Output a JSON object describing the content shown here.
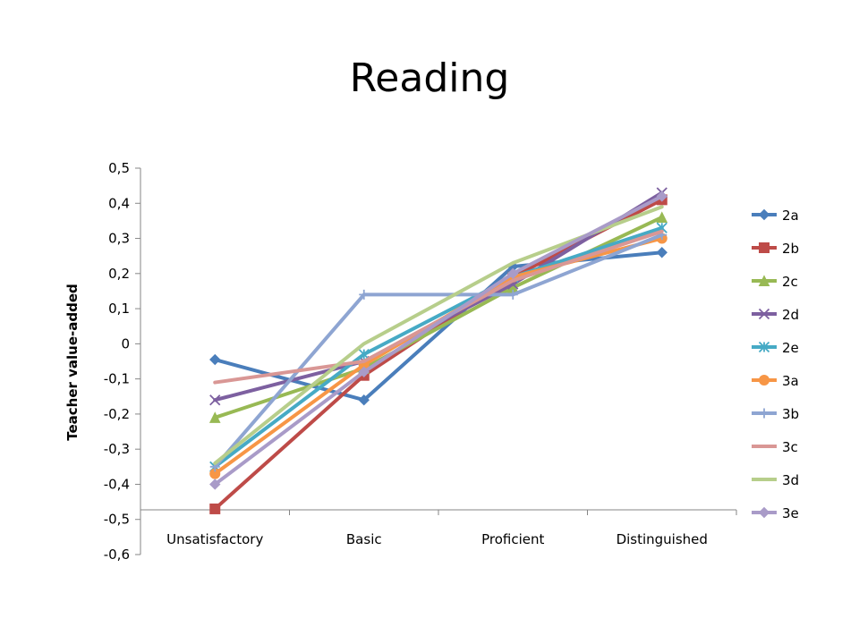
{
  "chart_data": {
    "type": "line",
    "title": "Reading",
    "xlabel": "",
    "ylabel": "Teacher value-added",
    "categories": [
      "Unsatisfactory",
      "Basic",
      "Proficient",
      "Distinguished"
    ],
    "ylim": [
      -0.6,
      0.5
    ],
    "yticks": [
      0.5,
      0.4,
      0.3,
      0.2,
      0.1,
      0,
      -0.1,
      -0.2,
      -0.3,
      -0.4,
      -0.5,
      -0.6
    ],
    "ytick_labels": [
      "0,5",
      "0,4",
      "0,3",
      "0,2",
      "0,1",
      "0",
      "-0,1",
      "-0,2",
      "-0,3",
      "-0,4",
      "-0,5",
      "-0,6"
    ],
    "grid": false,
    "legend_position": "right",
    "series": [
      {
        "name": "2a",
        "values": [
          -0.045,
          -0.16,
          0.22,
          0.26
        ],
        "color": "#4A7EBB",
        "marker": "diamond"
      },
      {
        "name": "2b",
        "values": [
          -0.47,
          -0.09,
          0.19,
          0.41
        ],
        "color": "#BE4B48",
        "marker": "square"
      },
      {
        "name": "2c",
        "values": [
          -0.21,
          -0.07,
          0.16,
          0.36
        ],
        "color": "#98B954",
        "marker": "triangle"
      },
      {
        "name": "2d",
        "values": [
          -0.16,
          -0.05,
          0.17,
          0.43
        ],
        "color": "#7D60A0",
        "marker": "x"
      },
      {
        "name": "2e",
        "values": [
          -0.35,
          -0.03,
          0.19,
          0.33
        ],
        "color": "#46AAC5",
        "marker": "star"
      },
      {
        "name": "3a",
        "values": [
          -0.37,
          -0.06,
          0.19,
          0.3
        ],
        "color": "#F79646",
        "marker": "circle"
      },
      {
        "name": "3b",
        "values": [
          -0.35,
          0.14,
          0.14,
          0.31
        ],
        "color": "#8EA5D2",
        "marker": "plus"
      },
      {
        "name": "3c",
        "values": [
          -0.11,
          -0.05,
          0.18,
          0.32
        ],
        "color": "#D99795",
        "marker": "none"
      },
      {
        "name": "3d",
        "values": [
          -0.34,
          0.0,
          0.23,
          0.39
        ],
        "color": "#B7CE8B",
        "marker": "none"
      },
      {
        "name": "3e",
        "values": [
          -0.4,
          -0.08,
          0.2,
          0.42
        ],
        "color": "#A99BC8",
        "marker": "diamond"
      }
    ]
  }
}
